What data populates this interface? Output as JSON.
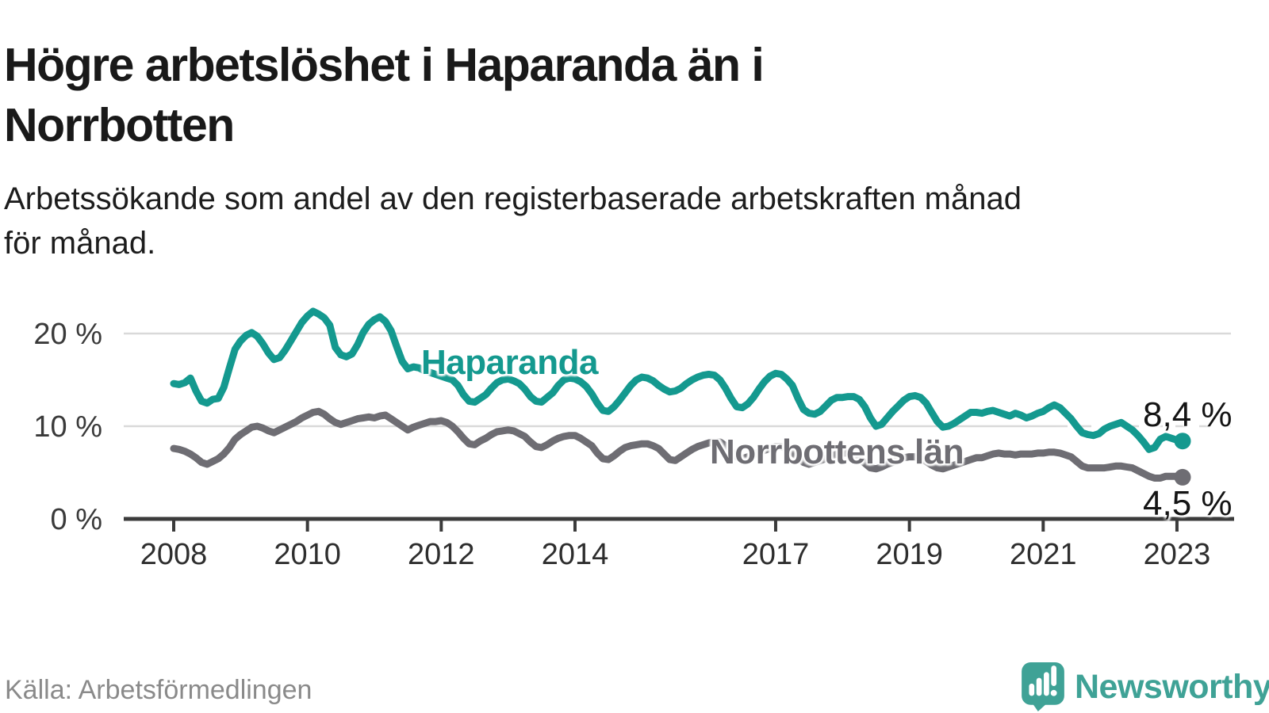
{
  "header": {
    "title": "Högre arbetslöshet i Haparanda än i\nNorrbotten",
    "subtitle": "Arbetssökande som andel av den registerbaserade arbetskraften månad\nför månad."
  },
  "footer": {
    "source": "Källa: Arbetsförmedlingen",
    "brand": "Newsworthy"
  },
  "colors": {
    "haparanda": "#14998f",
    "norrbotten": "#6e6d73",
    "brand": "#3fa296",
    "axis": "#3b3b3b",
    "grid": "#d9d9d9",
    "tick_text": "#2e2e2e",
    "muted": "#8a8a8a"
  },
  "chart_data": {
    "type": "line",
    "unit": "percent",
    "frequency": "monthly",
    "start": "2008-01",
    "end": "2023-02",
    "title": "Högre arbetslöshet i Haparanda än i Norrbotten",
    "ylim": [
      0,
      23
    ],
    "grid": "horizontal",
    "legend_position": "inline-labels",
    "y_axis": {
      "ticks": [
        {
          "value": 0,
          "label": "0 %"
        },
        {
          "value": 10,
          "label": "10 %"
        },
        {
          "value": 20,
          "label": "20 %"
        }
      ]
    },
    "x_axis": {
      "tick_years": [
        2008,
        2010,
        2012,
        2014,
        2017,
        2019,
        2021,
        2023
      ]
    },
    "series": [
      {
        "name": "Haparanda",
        "color": "#14998f",
        "end_label": "8,4 %",
        "end_value": 8.4,
        "values": [
          14.6,
          14.5,
          14.7,
          15.2,
          13.8,
          12.7,
          12.5,
          12.9,
          13.0,
          14.2,
          16.3,
          18.3,
          19.2,
          19.8,
          20.1,
          19.7,
          18.9,
          17.9,
          17.2,
          17.4,
          18.2,
          19.2,
          20.2,
          21.2,
          21.9,
          22.4,
          22.1,
          21.7,
          20.9,
          18.5,
          17.7,
          17.5,
          17.8,
          18.8,
          20.1,
          21.0,
          21.5,
          21.8,
          21.3,
          20.3,
          18.6,
          17.0,
          16.2,
          16.4,
          16.3,
          16.0,
          15.8,
          15.6,
          15.4,
          15.2,
          15.0,
          14.4,
          13.4,
          12.7,
          12.6,
          13.0,
          13.4,
          14.1,
          14.7,
          15.0,
          15.1,
          14.9,
          14.6,
          14.0,
          13.2,
          12.7,
          12.6,
          13.1,
          13.6,
          14.4,
          15.0,
          15.2,
          15.1,
          14.8,
          14.3,
          13.5,
          12.5,
          11.7,
          11.6,
          12.1,
          12.8,
          13.6,
          14.4,
          15.0,
          15.3,
          15.2,
          14.9,
          14.4,
          14.0,
          13.7,
          13.8,
          14.1,
          14.6,
          15.0,
          15.3,
          15.5,
          15.6,
          15.5,
          15.0,
          14.1,
          13.0,
          12.1,
          12.0,
          12.4,
          13.1,
          14.0,
          14.8,
          15.4,
          15.7,
          15.6,
          15.1,
          14.4,
          13.0,
          11.8,
          11.4,
          11.3,
          11.6,
          12.2,
          12.8,
          13.1,
          13.1,
          13.2,
          13.2,
          12.9,
          12.1,
          10.9,
          10.0,
          10.2,
          10.9,
          11.6,
          12.2,
          12.8,
          13.2,
          13.3,
          13.1,
          12.5,
          11.5,
          10.5,
          9.9,
          10.0,
          10.3,
          10.7,
          11.1,
          11.5,
          11.5,
          11.4,
          11.6,
          11.7,
          11.5,
          11.3,
          11.1,
          11.4,
          11.2,
          10.9,
          11.1,
          11.4,
          11.6,
          12.0,
          12.3,
          12.0,
          11.4,
          10.8,
          10.0,
          9.3,
          9.1,
          9.0,
          9.2,
          9.7,
          10.0,
          10.2,
          10.4,
          10.0,
          9.6,
          9.0,
          8.3,
          7.5,
          7.7,
          8.6,
          8.9,
          8.7,
          8.5,
          8.4
        ]
      },
      {
        "name": "Norrbottens län",
        "color": "#6e6d73",
        "end_label": "4,5 %",
        "end_value": 4.5,
        "values": [
          7.6,
          7.5,
          7.3,
          7.0,
          6.6,
          6.1,
          5.9,
          6.2,
          6.5,
          7.0,
          7.7,
          8.6,
          9.1,
          9.5,
          9.9,
          10.0,
          9.8,
          9.5,
          9.3,
          9.6,
          9.9,
          10.2,
          10.5,
          10.9,
          11.2,
          11.5,
          11.6,
          11.3,
          10.8,
          10.4,
          10.2,
          10.4,
          10.6,
          10.8,
          10.9,
          11.0,
          10.9,
          11.1,
          11.2,
          10.8,
          10.4,
          10.0,
          9.6,
          9.9,
          10.1,
          10.3,
          10.5,
          10.5,
          10.6,
          10.4,
          10.0,
          9.4,
          8.7,
          8.1,
          8.0,
          8.4,
          8.7,
          9.1,
          9.4,
          9.5,
          9.6,
          9.5,
          9.2,
          8.9,
          8.3,
          7.8,
          7.7,
          8.0,
          8.4,
          8.7,
          8.9,
          9.0,
          9.0,
          8.7,
          8.3,
          7.9,
          7.1,
          6.5,
          6.4,
          6.8,
          7.3,
          7.7,
          7.9,
          8.0,
          8.1,
          8.1,
          7.9,
          7.6,
          7.0,
          6.4,
          6.3,
          6.7,
          7.1,
          7.5,
          7.8,
          8.0,
          8.2,
          8.3,
          8.3,
          7.9,
          7.3,
          6.7,
          6.5,
          6.7,
          6.9,
          7.2,
          7.4,
          7.6,
          7.8,
          7.8,
          7.6,
          7.2,
          6.6,
          6.1,
          5.9,
          6.1,
          6.3,
          6.5,
          6.8,
          7.0,
          7.1,
          7.1,
          6.9,
          6.5,
          6.0,
          5.5,
          5.4,
          5.6,
          5.9,
          6.1,
          6.4,
          6.6,
          6.7,
          6.7,
          6.5,
          6.2,
          5.8,
          5.5,
          5.4,
          5.6,
          5.8,
          6.0,
          6.2,
          6.4,
          6.6,
          6.6,
          6.8,
          7.0,
          7.1,
          7.0,
          7.0,
          6.9,
          7.0,
          7.0,
          7.0,
          7.1,
          7.1,
          7.2,
          7.2,
          7.1,
          6.9,
          6.7,
          6.2,
          5.7,
          5.5,
          5.5,
          5.5,
          5.5,
          5.6,
          5.7,
          5.7,
          5.6,
          5.5,
          5.2,
          4.9,
          4.6,
          4.4,
          4.4,
          4.6,
          4.6,
          4.6,
          4.5
        ]
      }
    ]
  }
}
